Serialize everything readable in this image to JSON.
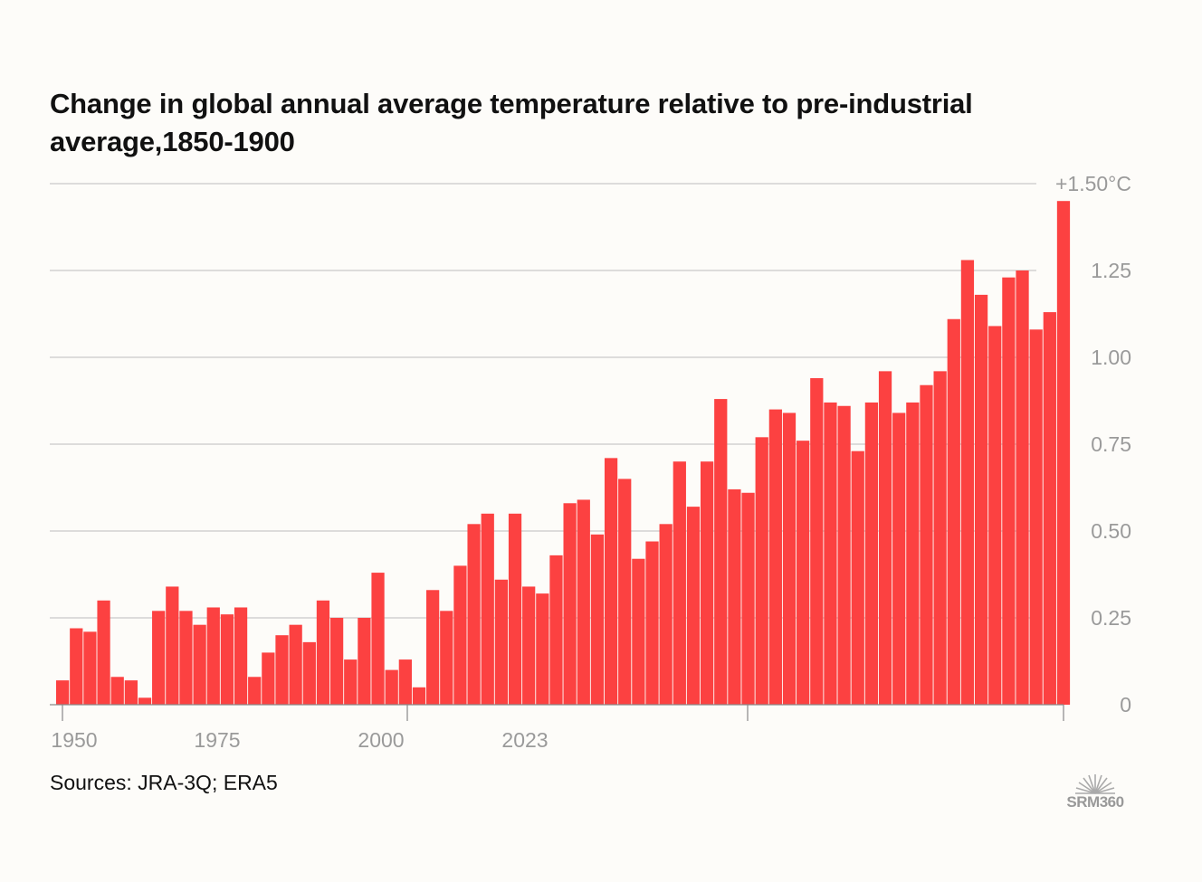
{
  "title": "Change in global annual average temperature relative to pre-industrial average,1850-1900",
  "source": "Sources: JRA-3Q; ERA5",
  "logo_text": "SRM360",
  "colors": {
    "bar": "#fc4141",
    "grid": "#bdbdbd",
    "axis": "#888888",
    "text": "#111111",
    "tick": "#9a9a9a"
  },
  "chart_data": {
    "type": "bar",
    "ylim": [
      0,
      1.5
    ],
    "y_ticks": [
      {
        "value": 0,
        "label": "0"
      },
      {
        "value": 0.25,
        "label": "0.25"
      },
      {
        "value": 0.5,
        "label": "0.50"
      },
      {
        "value": 0.75,
        "label": "0.75"
      },
      {
        "value": 1.0,
        "label": "1.00"
      },
      {
        "value": 1.25,
        "label": "1.25"
      },
      {
        "value": 1.5,
        "label": "+1.50°C"
      }
    ],
    "x_tick_labels": [
      {
        "year": 1950,
        "label": "1950"
      },
      {
        "year": 1975,
        "label": "1975"
      },
      {
        "year": 2000,
        "label": "2000"
      },
      {
        "year": 2023,
        "label": "2023"
      }
    ],
    "grid": true,
    "categories": [
      1950,
      1951,
      1952,
      1953,
      1954,
      1955,
      1956,
      1957,
      1958,
      1959,
      1960,
      1961,
      1962,
      1963,
      1964,
      1965,
      1966,
      1967,
      1968,
      1969,
      1970,
      1971,
      1972,
      1973,
      1974,
      1975,
      1976,
      1977,
      1978,
      1979,
      1980,
      1981,
      1982,
      1983,
      1984,
      1985,
      1986,
      1987,
      1988,
      1989,
      1990,
      1991,
      1992,
      1993,
      1994,
      1995,
      1996,
      1997,
      1998,
      1999,
      2000,
      2001,
      2002,
      2003,
      2004,
      2005,
      2006,
      2007,
      2008,
      2009,
      2010,
      2011,
      2012,
      2013,
      2014,
      2015,
      2016,
      2017,
      2018,
      2019,
      2020,
      2021,
      2022,
      2023
    ],
    "values": [
      0.07,
      0.22,
      0.21,
      0.3,
      0.08,
      0.07,
      0.02,
      0.27,
      0.34,
      0.27,
      0.23,
      0.28,
      0.26,
      0.28,
      0.08,
      0.15,
      0.2,
      0.23,
      0.18,
      0.3,
      0.25,
      0.13,
      0.25,
      0.38,
      0.1,
      0.13,
      0.05,
      0.33,
      0.27,
      0.4,
      0.52,
      0.55,
      0.36,
      0.55,
      0.34,
      0.32,
      0.43,
      0.58,
      0.59,
      0.49,
      0.71,
      0.65,
      0.42,
      0.47,
      0.52,
      0.7,
      0.57,
      0.7,
      0.88,
      0.62,
      0.61,
      0.77,
      0.85,
      0.84,
      0.76,
      0.94,
      0.87,
      0.86,
      0.73,
      0.87,
      0.96,
      0.84,
      0.87,
      0.92,
      0.96,
      1.11,
      1.28,
      1.18,
      1.09,
      1.23,
      1.25,
      1.08,
      1.13,
      1.45
    ]
  }
}
